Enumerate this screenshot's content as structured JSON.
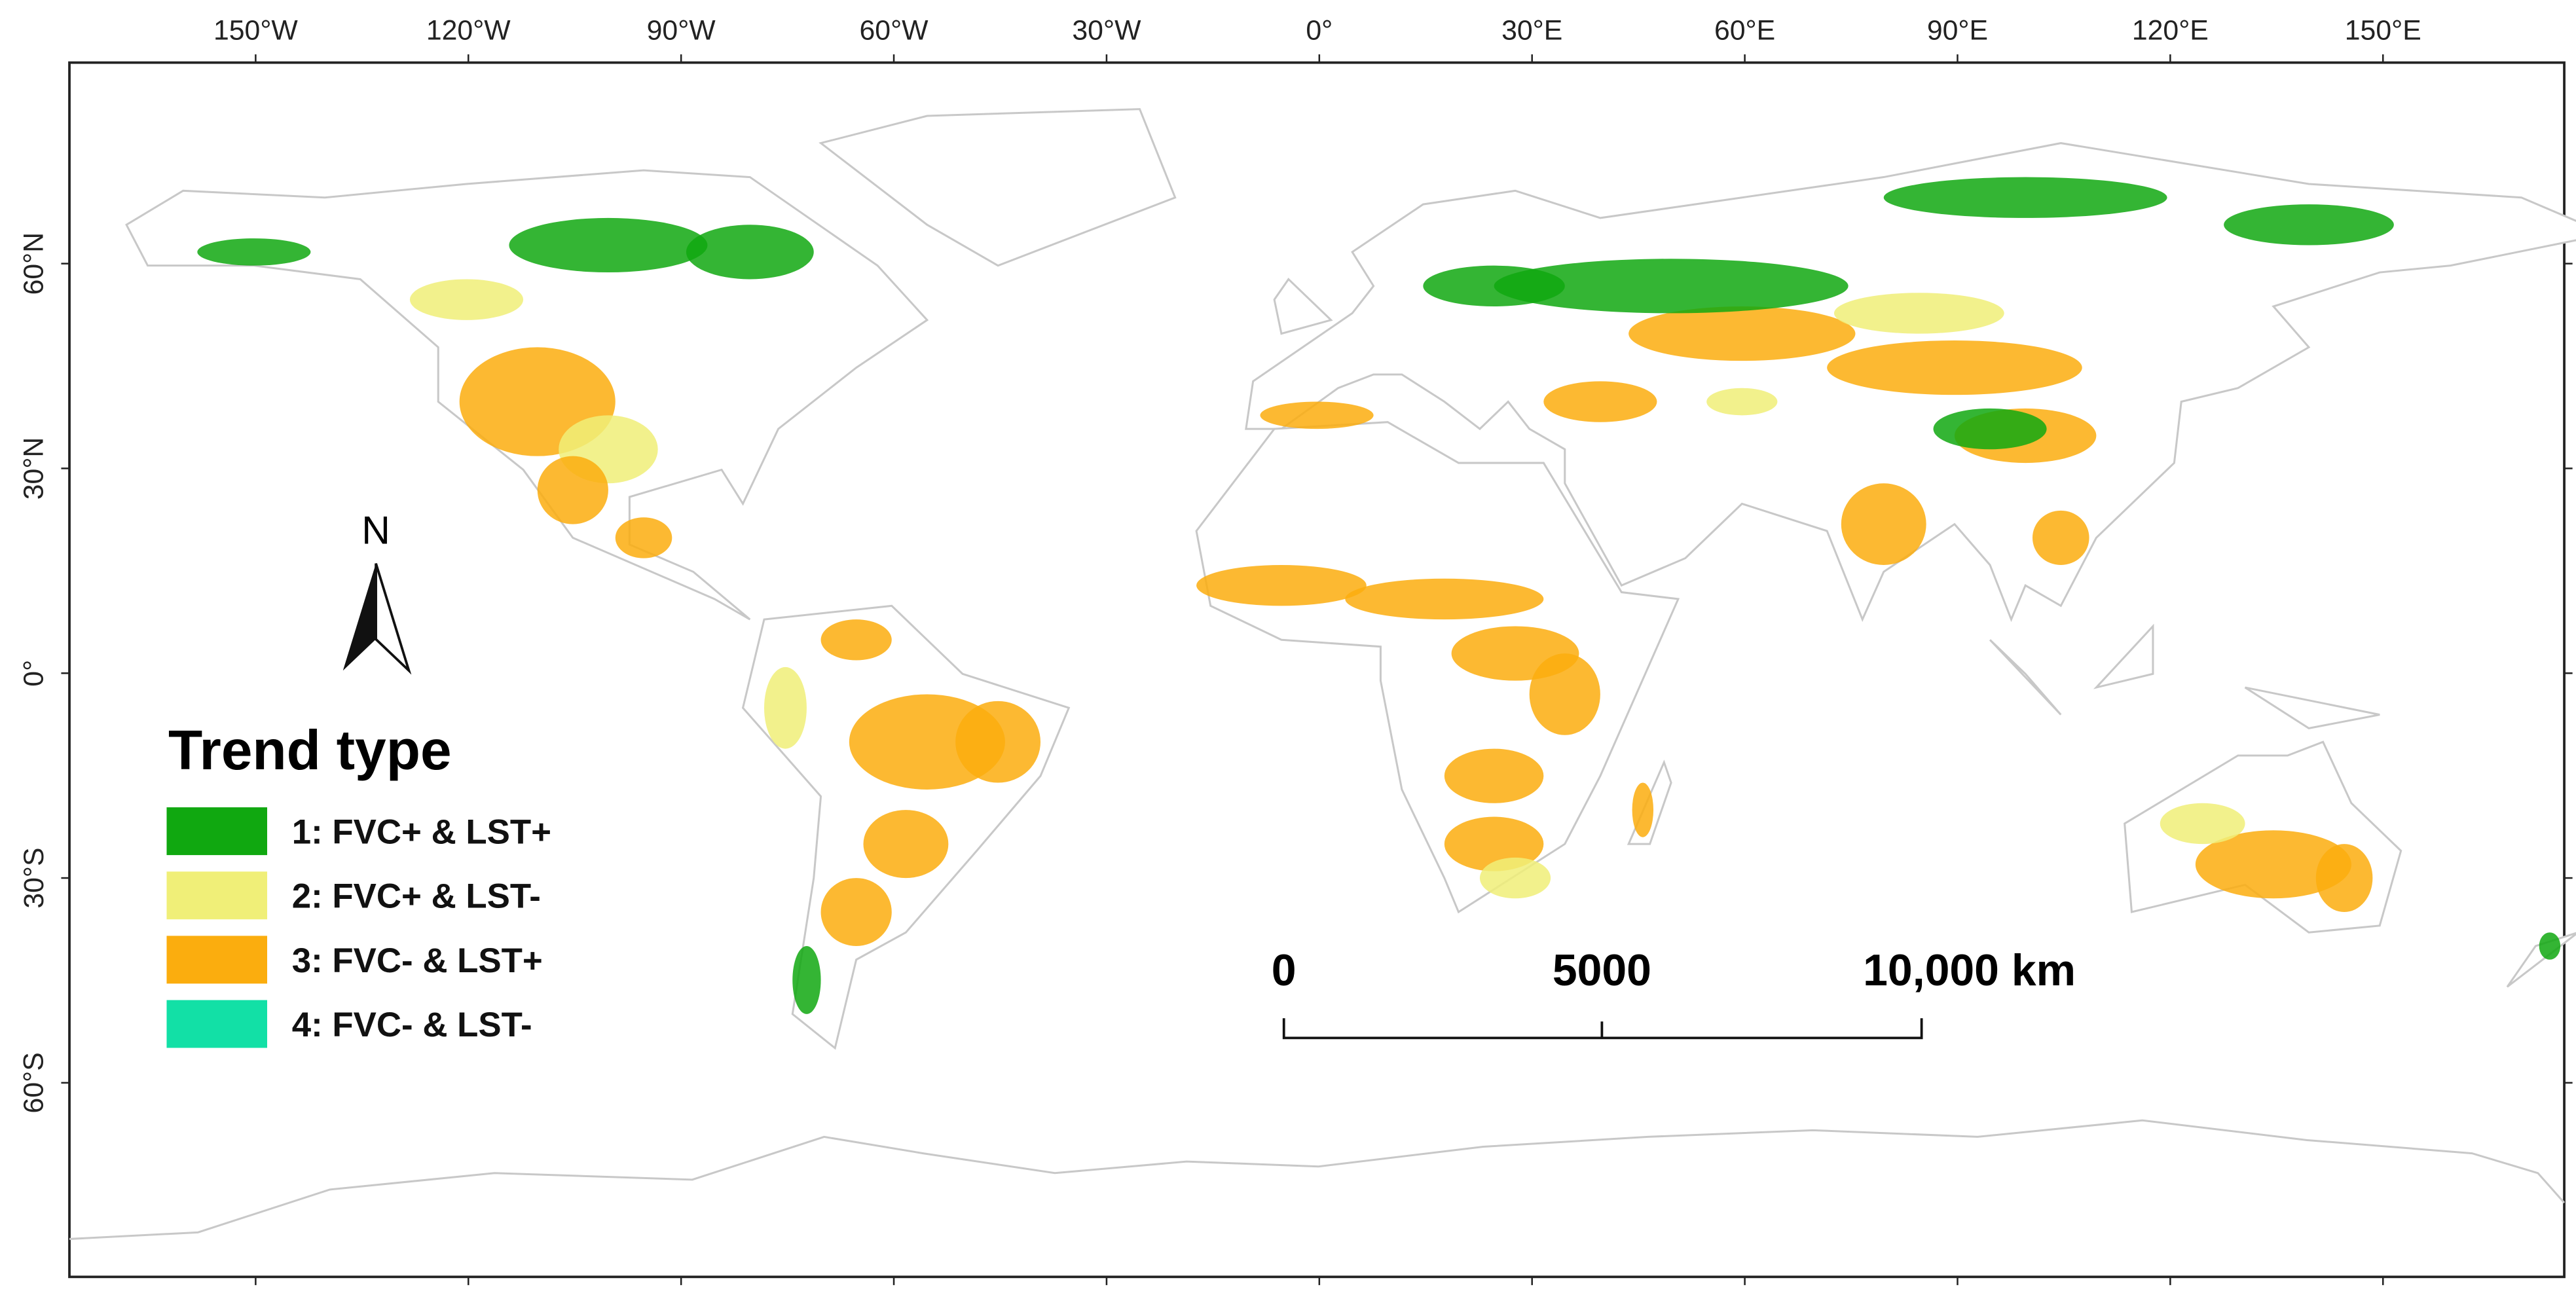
{
  "map": {
    "lon_labels": [
      "150°W",
      "120°W",
      "90°W",
      "60°W",
      "30°W",
      "0°",
      "30°E",
      "60°E",
      "90°E",
      "120°E",
      "150°E"
    ],
    "lat_labels": [
      "60°N",
      "30°N",
      "0°",
      "30°S",
      "60°S"
    ],
    "north": "N",
    "legend": {
      "title": "Trend type",
      "items": [
        {
          "label": "1: FVC+ & LST+",
          "color": "#10a810"
        },
        {
          "label": "2: FVC+ & LST-",
          "color": "#f0ef78"
        },
        {
          "label": "3: FVC- & LST+",
          "color": "#fbad0e"
        },
        {
          "label": "4: FVC- & LST-",
          "color": "#12e0a6"
        }
      ]
    },
    "scale_bar": {
      "labels": [
        "0",
        "5000",
        "10,000 km"
      ]
    }
  }
}
